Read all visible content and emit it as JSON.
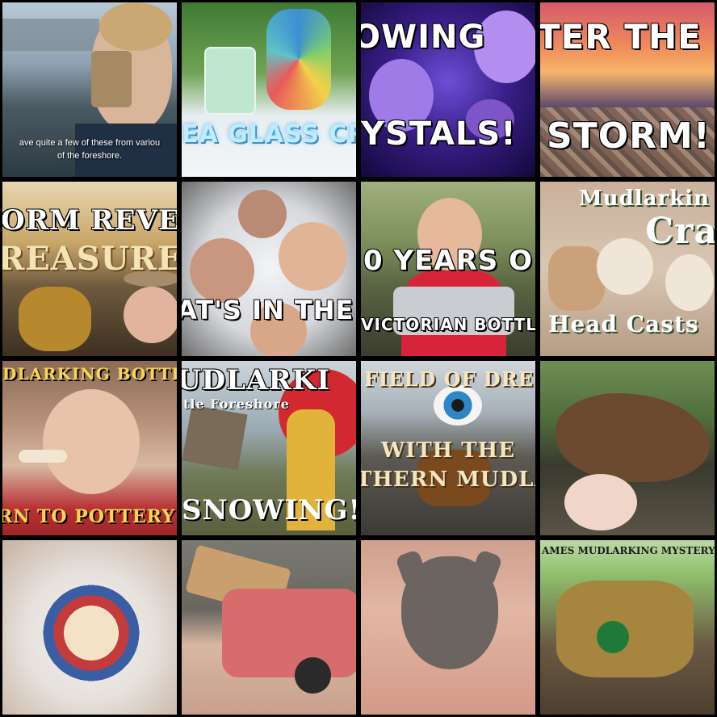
{
  "tiles": [
    {
      "caption": "ave quite a few of these from variou",
      "caption2": "of the foreshore."
    },
    {
      "caption": "EA GLASS CRAFT"
    },
    {
      "caption": "OWING",
      "caption2": "YSTALS!"
    },
    {
      "caption": "TER THE",
      "caption2": "STORM!"
    },
    {
      "caption": "ORM REVEA",
      "caption2": "REASURE"
    },
    {
      "caption": "AT'S IN THE H"
    },
    {
      "caption": "0 YEARS O",
      "caption2": "VICTORIAN BOTTLE"
    },
    {
      "caption": "Mudlarkin",
      "caption2": "Cra",
      "caption3": "Head Casts"
    },
    {
      "caption": "DLARKING BOTTLE BE",
      "caption2": "RN TO POTTERY PAR"
    },
    {
      "caption": "UDLARKI",
      "caption2": "tle Foreshore",
      "caption3": "SNOWING!"
    },
    {
      "caption": "FIELD OF DRE",
      "caption2": "WITH THE",
      "caption3": "THERN MUDLA"
    },
    {
      "caption": ""
    },
    {
      "caption": ""
    },
    {
      "caption": ""
    },
    {
      "caption": ""
    },
    {
      "caption": "AMES MUDLARKING MYSTERY"
    }
  ]
}
